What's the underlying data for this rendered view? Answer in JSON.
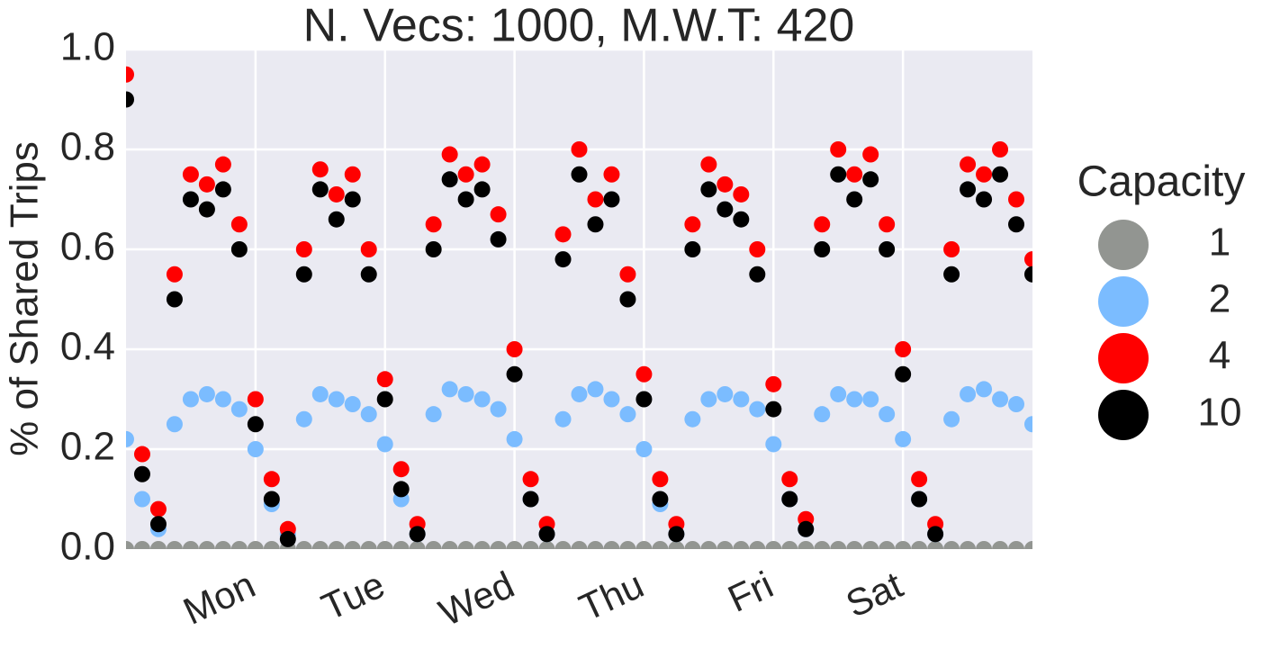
{
  "chart_data": {
    "type": "scatter",
    "title": "N. Vecs: 1000, M.W.T: 420",
    "y_label": "% of Shared Trips",
    "legend_title": "Capacity",
    "legend": "right",
    "grid": true,
    "xlim": [
      0,
      7
    ],
    "xticks": [
      {
        "value": 1,
        "label": "Mon"
      },
      {
        "value": 2,
        "label": "Tue"
      },
      {
        "value": 3,
        "label": "Wed"
      },
      {
        "value": 4,
        "label": "Thu"
      },
      {
        "value": 5,
        "label": "Fri"
      },
      {
        "value": 6,
        "label": "Sat"
      }
    ],
    "ylim": [
      0,
      1
    ],
    "yticks": [
      {
        "value": 0,
        "label": "0.0"
      },
      0.2,
      0.4,
      0.6,
      0.8,
      {
        "value": 1,
        "label": "1.0"
      }
    ],
    "x": [
      0,
      0.125,
      0.25,
      0.375,
      0.5,
      0.625,
      0.75,
      0.875,
      1,
      1.125,
      1.25,
      1.375,
      1.5,
      1.625,
      1.75,
      1.875,
      2,
      2.125,
      2.25,
      2.375,
      2.5,
      2.625,
      2.75,
      2.875,
      3,
      3.125,
      3.25,
      3.375,
      3.5,
      3.625,
      3.75,
      3.875,
      4,
      4.125,
      4.25,
      4.375,
      4.5,
      4.625,
      4.75,
      4.875,
      5,
      5.125,
      5.25,
      5.375,
      5.5,
      5.625,
      5.75,
      5.875,
      6,
      6.125,
      6.25,
      6.375,
      6.5,
      6.625,
      6.75,
      6.875,
      7
    ],
    "series": [
      {
        "name": "1",
        "color": "#929591",
        "values": [
          0,
          0,
          0,
          0,
          0,
          0,
          0,
          0,
          0,
          0,
          0,
          0,
          0,
          0,
          0,
          0,
          0,
          0,
          0,
          0,
          0,
          0,
          0,
          0,
          0,
          0,
          0,
          0,
          0,
          0,
          0,
          0,
          0,
          0,
          0,
          0,
          0,
          0,
          0,
          0,
          0,
          0,
          0,
          0,
          0,
          0,
          0,
          0,
          0,
          0,
          0,
          0,
          0,
          0,
          0,
          0,
          0
        ]
      },
      {
        "name": "2",
        "color": "#7bbcff",
        "values": [
          0.22,
          0.1,
          0.04,
          0.25,
          0.3,
          0.31,
          0.3,
          0.28,
          0.2,
          0.09,
          0.03,
          0.26,
          0.31,
          0.3,
          0.29,
          0.27,
          0.21,
          0.1,
          0.03,
          0.27,
          0.32,
          0.31,
          0.3,
          0.28,
          0.22,
          0.1,
          0.03,
          0.26,
          0.31,
          0.32,
          0.3,
          0.27,
          0.2,
          0.09,
          0.03,
          0.26,
          0.3,
          0.31,
          0.3,
          0.28,
          0.21,
          0.1,
          0.04,
          0.27,
          0.31,
          0.3,
          0.3,
          0.27,
          0.22,
          0.1,
          0.03,
          0.26,
          0.31,
          0.32,
          0.3,
          0.29,
          0.25
        ]
      },
      {
        "name": "4",
        "color": "#ff0000",
        "values": [
          0.95,
          0.19,
          0.08,
          0.55,
          0.75,
          0.73,
          0.77,
          0.65,
          0.3,
          0.14,
          0.04,
          0.6,
          0.76,
          0.71,
          0.75,
          0.6,
          0.34,
          0.16,
          0.05,
          0.65,
          0.79,
          0.75,
          0.77,
          0.67,
          0.4,
          0.14,
          0.05,
          0.63,
          0.8,
          0.7,
          0.75,
          0.55,
          0.35,
          0.14,
          0.05,
          0.65,
          0.77,
          0.73,
          0.71,
          0.6,
          0.33,
          0.14,
          0.06,
          0.65,
          0.8,
          0.75,
          0.79,
          0.65,
          0.4,
          0.14,
          0.05,
          0.6,
          0.77,
          0.75,
          0.8,
          0.7,
          0.58
        ]
      },
      {
        "name": "10",
        "color": "#000000",
        "values": [
          0.9,
          0.15,
          0.05,
          0.5,
          0.7,
          0.68,
          0.72,
          0.6,
          0.25,
          0.1,
          0.02,
          0.55,
          0.72,
          0.66,
          0.7,
          0.55,
          0.3,
          0.12,
          0.03,
          0.6,
          0.74,
          0.7,
          0.72,
          0.62,
          0.35,
          0.1,
          0.03,
          0.58,
          0.75,
          0.65,
          0.7,
          0.5,
          0.3,
          0.1,
          0.03,
          0.6,
          0.72,
          0.68,
          0.66,
          0.55,
          0.28,
          0.1,
          0.04,
          0.6,
          0.75,
          0.7,
          0.74,
          0.6,
          0.35,
          0.1,
          0.03,
          0.55,
          0.72,
          0.7,
          0.75,
          0.65,
          0.55
        ]
      }
    ]
  }
}
